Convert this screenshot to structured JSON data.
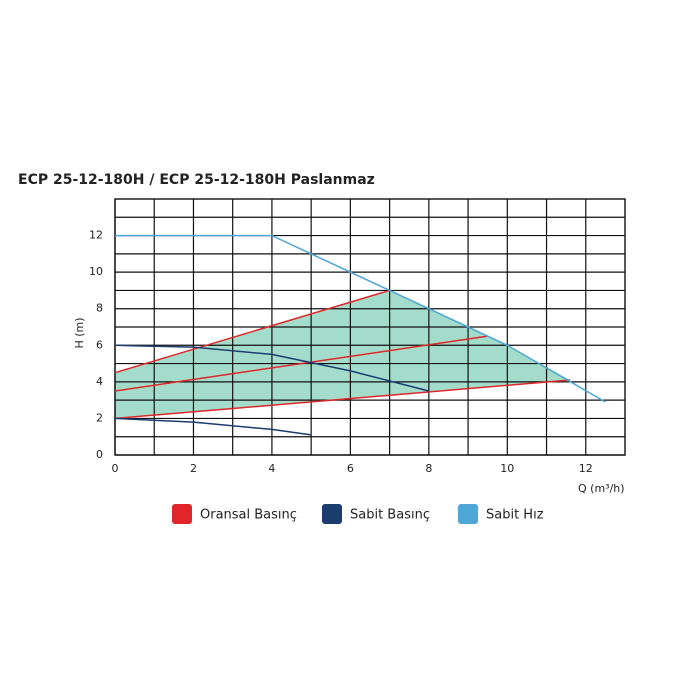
{
  "chart_data": {
    "type": "line",
    "title": "ECP 25-12-180H / ECP 25-12-180H Paslanmaz",
    "x_label": "Q (m³/h)",
    "y_label": "H (m)",
    "xlim": [
      0,
      13
    ],
    "ylim": [
      0,
      14
    ],
    "xticks": [
      0,
      2,
      4,
      6,
      8,
      10,
      12
    ],
    "yticks": [
      0,
      2,
      4,
      6,
      8,
      10,
      12
    ],
    "grid": true,
    "area": {
      "color": "#a3dccb",
      "x": [
        0,
        7,
        10,
        11.6,
        0
      ],
      "y": [
        4.5,
        9,
        6,
        4.1,
        2
      ]
    },
    "series": [
      {
        "name": "Oransal Basınç",
        "color": "#e0262b",
        "lines": [
          {
            "x": [
              0,
              7
            ],
            "y": [
              4.5,
              9
            ]
          },
          {
            "x": [
              0,
              9.5
            ],
            "y": [
              3.5,
              6.5
            ]
          },
          {
            "x": [
              0,
              11.6
            ],
            "y": [
              2,
              4.1
            ]
          }
        ]
      },
      {
        "name": "Sabit Basınç",
        "color": "#1a3c6e",
        "lines": [
          {
            "x": [
              0,
              2,
              4,
              6,
              8
            ],
            "y": [
              6,
              5.9,
              5.5,
              4.6,
              3.5
            ]
          },
          {
            "x": [
              0,
              2,
              4,
              5
            ],
            "y": [
              2,
              1.8,
              1.4,
              1.1
            ]
          }
        ]
      },
      {
        "name": "Sabit Hız",
        "color": "#4da6d6",
        "lines": [
          {
            "x": [
              0,
              4,
              7,
              10,
              12.5
            ],
            "y": [
              12,
              12,
              9,
              6,
              2.9
            ]
          }
        ]
      }
    ]
  }
}
